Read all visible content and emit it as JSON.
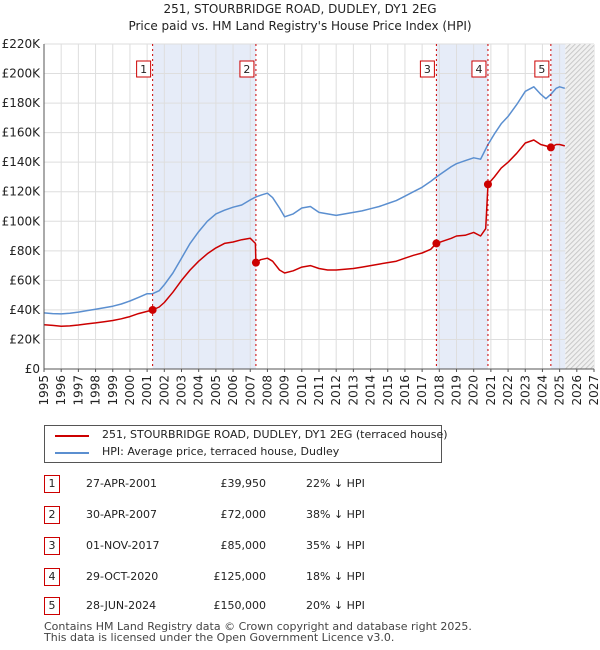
{
  "chart_data": {
    "type": "line",
    "title": "251, STOURBRIDGE ROAD, DUDLEY, DY1 2EG",
    "subtitle": "Price paid vs. HM Land Registry's House Price Index (HPI)",
    "xlim": [
      1995,
      2027
    ],
    "ylim": [
      0,
      220000
    ],
    "x_ticks": [
      1995,
      1996,
      1997,
      1998,
      1999,
      2000,
      2001,
      2002,
      2003,
      2004,
      2005,
      2006,
      2007,
      2008,
      2009,
      2010,
      2011,
      2012,
      2013,
      2014,
      2015,
      2016,
      2017,
      2018,
      2019,
      2020,
      2021,
      2022,
      2023,
      2024,
      2025,
      2026,
      2027
    ],
    "y_ticks": [
      0,
      20000,
      40000,
      60000,
      80000,
      100000,
      120000,
      140000,
      160000,
      180000,
      200000,
      220000
    ],
    "y_tick_labels": [
      "£0",
      "£20K",
      "£40K",
      "£60K",
      "£80K",
      "£100K",
      "£120K",
      "£140K",
      "£160K",
      "£180K",
      "£200K",
      "£220K"
    ],
    "forecast_start": 2025.33,
    "series": [
      {
        "name": "251, STOURBRIDGE ROAD, DUDLEY, DY1 2EG (terraced house)",
        "color": "#cc0000",
        "points": [
          [
            1995.0,
            30000
          ],
          [
            1995.5,
            29500
          ],
          [
            1996.0,
            29000
          ],
          [
            1996.5,
            29200
          ],
          [
            1997.0,
            29800
          ],
          [
            1997.5,
            30500
          ],
          [
            1998.0,
            31200
          ],
          [
            1998.5,
            32000
          ],
          [
            1999.0,
            32800
          ],
          [
            1999.5,
            34000
          ],
          [
            2000.0,
            35500
          ],
          [
            2000.5,
            37500
          ],
          [
            2001.0,
            39000
          ],
          [
            2001.32,
            39950
          ],
          [
            2001.7,
            42000
          ],
          [
            2002.0,
            45000
          ],
          [
            2002.5,
            52000
          ],
          [
            2003.0,
            60000
          ],
          [
            2003.5,
            67000
          ],
          [
            2004.0,
            73000
          ],
          [
            2004.5,
            78000
          ],
          [
            2005.0,
            82000
          ],
          [
            2005.5,
            85000
          ],
          [
            2006.0,
            86000
          ],
          [
            2006.5,
            87500
          ],
          [
            2007.0,
            88500
          ],
          [
            2007.3,
            85000
          ],
          [
            2007.33,
            72000
          ],
          [
            2007.6,
            74000
          ],
          [
            2008.0,
            75000
          ],
          [
            2008.3,
            73000
          ],
          [
            2008.7,
            67000
          ],
          [
            2009.0,
            65000
          ],
          [
            2009.5,
            66500
          ],
          [
            2010.0,
            69000
          ],
          [
            2010.5,
            70000
          ],
          [
            2011.0,
            68000
          ],
          [
            2011.5,
            67000
          ],
          [
            2012.0,
            67000
          ],
          [
            2012.5,
            67500
          ],
          [
            2013.0,
            68000
          ],
          [
            2013.5,
            69000
          ],
          [
            2014.0,
            70000
          ],
          [
            2014.5,
            71000
          ],
          [
            2015.0,
            72000
          ],
          [
            2015.5,
            73000
          ],
          [
            2016.0,
            75000
          ],
          [
            2016.5,
            77000
          ],
          [
            2017.0,
            78500
          ],
          [
            2017.5,
            81000
          ],
          [
            2017.83,
            85000
          ],
          [
            2018.2,
            86500
          ],
          [
            2018.7,
            88500
          ],
          [
            2019.0,
            90000
          ],
          [
            2019.5,
            90500
          ],
          [
            2020.0,
            92500
          ],
          [
            2020.4,
            90000
          ],
          [
            2020.7,
            95000
          ],
          [
            2020.83,
            125000
          ],
          [
            2021.2,
            130000
          ],
          [
            2021.6,
            136000
          ],
          [
            2022.0,
            140000
          ],
          [
            2022.5,
            146000
          ],
          [
            2023.0,
            153000
          ],
          [
            2023.5,
            155000
          ],
          [
            2023.9,
            152000
          ],
          [
            2024.2,
            151000
          ],
          [
            2024.49,
            150000
          ],
          [
            2024.8,
            152000
          ],
          [
            2025.0,
            152000
          ],
          [
            2025.3,
            151000
          ]
        ]
      },
      {
        "name": "HPI: Average price, terraced house, Dudley",
        "color": "#5b8fd0",
        "points": [
          [
            1995.0,
            38000
          ],
          [
            1995.5,
            37500
          ],
          [
            1996.0,
            37300
          ],
          [
            1996.5,
            37800
          ],
          [
            1997.0,
            38500
          ],
          [
            1997.5,
            39500
          ],
          [
            1998.0,
            40500
          ],
          [
            1998.5,
            41500
          ],
          [
            1999.0,
            42500
          ],
          [
            1999.5,
            44000
          ],
          [
            2000.0,
            46000
          ],
          [
            2000.5,
            48500
          ],
          [
            2001.0,
            51000
          ],
          [
            2001.32,
            51000
          ],
          [
            2001.7,
            53000
          ],
          [
            2002.0,
            57000
          ],
          [
            2002.5,
            65000
          ],
          [
            2003.0,
            75000
          ],
          [
            2003.5,
            85000
          ],
          [
            2004.0,
            93000
          ],
          [
            2004.5,
            100000
          ],
          [
            2005.0,
            105000
          ],
          [
            2005.5,
            107500
          ],
          [
            2006.0,
            109500
          ],
          [
            2006.5,
            111000
          ],
          [
            2007.0,
            114500
          ],
          [
            2007.33,
            116500
          ],
          [
            2007.7,
            118000
          ],
          [
            2008.0,
            119000
          ],
          [
            2008.3,
            116000
          ],
          [
            2008.7,
            109000
          ],
          [
            2009.0,
            103000
          ],
          [
            2009.5,
            105000
          ],
          [
            2010.0,
            109000
          ],
          [
            2010.5,
            110000
          ],
          [
            2011.0,
            106000
          ],
          [
            2011.5,
            105000
          ],
          [
            2012.0,
            104000
          ],
          [
            2012.5,
            105000
          ],
          [
            2013.0,
            106000
          ],
          [
            2013.5,
            107000
          ],
          [
            2014.0,
            108500
          ],
          [
            2014.5,
            110000
          ],
          [
            2015.0,
            112000
          ],
          [
            2015.5,
            114000
          ],
          [
            2016.0,
            117000
          ],
          [
            2016.5,
            120000
          ],
          [
            2017.0,
            123000
          ],
          [
            2017.5,
            127000
          ],
          [
            2017.83,
            130000
          ],
          [
            2018.2,
            133000
          ],
          [
            2018.7,
            137000
          ],
          [
            2019.0,
            139000
          ],
          [
            2019.5,
            141000
          ],
          [
            2020.0,
            143000
          ],
          [
            2020.4,
            142000
          ],
          [
            2020.83,
            152000
          ],
          [
            2021.2,
            159000
          ],
          [
            2021.6,
            166000
          ],
          [
            2022.0,
            171000
          ],
          [
            2022.5,
            179000
          ],
          [
            2023.0,
            188000
          ],
          [
            2023.5,
            191000
          ],
          [
            2023.9,
            186000
          ],
          [
            2024.2,
            183000
          ],
          [
            2024.49,
            186000
          ],
          [
            2024.8,
            190000
          ],
          [
            2025.0,
            191000
          ],
          [
            2025.3,
            190000
          ]
        ]
      }
    ],
    "sales": [
      {
        "id": "1",
        "x": 2001.32,
        "y": 39950
      },
      {
        "id": "2",
        "x": 2007.33,
        "y": 72000
      },
      {
        "id": "3",
        "x": 2017.83,
        "y": 85000
      },
      {
        "id": "4",
        "x": 2020.83,
        "y": 125000
      },
      {
        "id": "5",
        "x": 2024.49,
        "y": 150000
      }
    ]
  },
  "shaded_spans": [
    [
      2001.32,
      2007.33
    ],
    [
      2017.83,
      2020.83
    ],
    [
      2024.49,
      2025.33
    ]
  ],
  "legend": {
    "property_label": "251, STOURBRIDGE ROAD, DUDLEY, DY1 2EG (terraced house)",
    "hpi_label": "HPI: Average price, terraced house, Dudley",
    "property_color": "#cc0000",
    "hpi_color": "#5b8fd0"
  },
  "sales_table": [
    {
      "num": "1",
      "date": "27-APR-2001",
      "price": "£39,950",
      "delta": "22% ↓ HPI"
    },
    {
      "num": "2",
      "date": "30-APR-2007",
      "price": "£72,000",
      "delta": "38% ↓ HPI"
    },
    {
      "num": "3",
      "date": "01-NOV-2017",
      "price": "£85,000",
      "delta": "35% ↓ HPI"
    },
    {
      "num": "4",
      "date": "29-OCT-2020",
      "price": "£125,000",
      "delta": "18% ↓ HPI"
    },
    {
      "num": "5",
      "date": "28-JUN-2024",
      "price": "£150,000",
      "delta": "20% ↓ HPI"
    }
  ],
  "footer": {
    "line1": "Contains HM Land Registry data © Crown copyright and database right 2025.",
    "line2": "This data is licensed under the Open Government Licence v3.0."
  }
}
